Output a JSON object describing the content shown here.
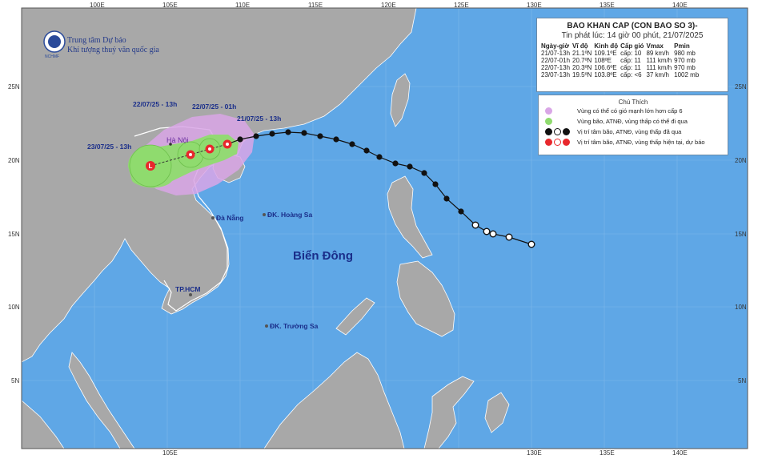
{
  "header": {
    "agency_line1": "Trung tâm Dự báo",
    "agency_line2": "Khí tượng thuỷ văn quốc gia",
    "logo_text": "NCHMF"
  },
  "bulletin": {
    "title": "BAO KHAN CAP (CON BAO SO 3)-",
    "issued": "Tin phát lúc: 14 giờ 00 phút, 21/07/2025",
    "columns": [
      "Ngày-giờ",
      "Vĩ độ",
      "Kinh độ",
      "Cấp gió",
      "Vmax",
      "Pmin"
    ],
    "rows": [
      [
        "21/07-13h",
        "21.1ºN",
        "109.1ºE",
        "cấp: 10",
        "89 km/h",
        "980 mb"
      ],
      [
        "22/07-01h",
        "20.7ºN",
        "108ºE",
        "cấp: 11",
        "111 km/h",
        "970 mb"
      ],
      [
        "22/07-13h",
        "20.3ºN",
        "106.6ºE",
        "cấp: 11",
        "111 km/h",
        "970 mb"
      ],
      [
        "23/07-13h",
        "19.5ºN",
        "103.8ºE",
        "cấp: <6",
        "37 km/h",
        "1002 mb"
      ]
    ]
  },
  "legend": {
    "title": "Chú Thích",
    "items": [
      {
        "text": "Vùng có thể có gió mạnh lớn hơn cấp 6",
        "color": "#d9a6e6"
      },
      {
        "text": "Vùng bão, ATNĐ, vùng thấp có thể đi qua",
        "color": "#8fdb6e"
      },
      {
        "text": "Vị trí tâm bão, ATNĐ, vùng thấp đã qua",
        "color": "#111111"
      },
      {
        "text": "Vị trí tâm bão, ATNĐ, vùng thấp hiện tại, dự báo",
        "color": "#e8282d"
      }
    ]
  },
  "map_labels": {
    "hanoi": "Hà Nội",
    "danang": "Đà Nẵng",
    "hoangsa": "ĐK. Hoàng Sa",
    "hcm": "TP.HCM",
    "truongsa": "ĐK. Trường Sa",
    "biendong": "Biển Đông",
    "t1": "23/07/25 - 13h",
    "t2": "22/07/25 - 13h",
    "t3": "22/07/25 - 01h",
    "t4": "21/07/25 - 13h"
  },
  "axes": {
    "top": [
      "100E",
      "105E",
      "110E",
      "115E",
      "120E",
      "125E",
      "130E",
      "135E",
      "140E"
    ],
    "bottom": [
      "105E",
      "130E",
      "135E",
      "140E"
    ],
    "left": [
      "25N",
      "20N",
      "15N",
      "10N",
      "5N"
    ],
    "right": [
      "25N",
      "20N",
      "15N",
      "10N",
      "5N"
    ]
  },
  "colors": {
    "sea": "#5fa7e6",
    "land": "#a8a8a8",
    "wind_zone": "#d9a6e6",
    "storm_zone": "#8fdb6e",
    "past_track": "#111111",
    "forecast": "#e8282d"
  }
}
